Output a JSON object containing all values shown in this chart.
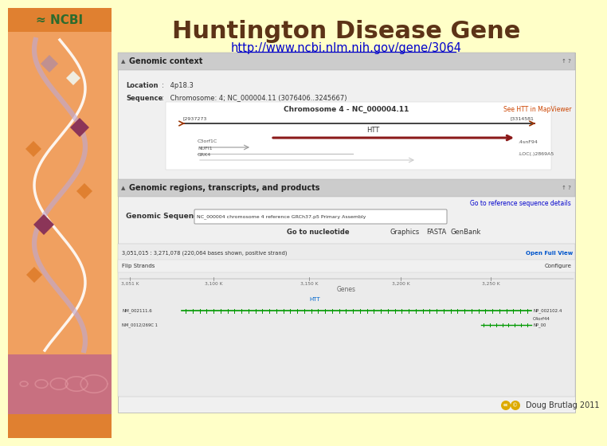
{
  "title": "Huntington Disease Gene",
  "url": "http://www.ncbi.nlm.nih.gov/gene/3064",
  "title_color": "#5C3317",
  "url_color": "#0000CC",
  "slide_bg": "#FFFFC8",
  "left_panel_bg": "#F0A060",
  "ncbi_bg_color": "#E08030",
  "ncbi_text_color": "#2D6B2D",
  "bottom_bar_color": "#E08030",
  "credit_text": "Doug Brutlag 2011",
  "credit_color": "#333333",
  "genomic_context_header": "Genomic context",
  "location_text": "Location  :   4p18.3",
  "sequence_text": "Sequence  :   Chromosome: 4; NC_000004.11 (3076406..3245667)",
  "chr_title": "Chromosome 4 - NC_000004.11",
  "see_htt_text": "See HTT in MapViewer",
  "genomic_regions_header": "Genomic regions, transcripts, and products",
  "go_to_ref": "Go to reference sequence details",
  "genomic_seq_label": "Genomic Sequence",
  "go_to_nuc": "Go to nucleotide",
  "graphics_text": "Graphics",
  "fasta_text": "FASTA",
  "genbank_text": "GenBank",
  "coord_text": "3,051,015 : 3,271,078 (220,064 bases shown, positive strand)",
  "open_full_view": "Open Full View",
  "flip_strands": "Flip Strands",
  "configure": "Configure",
  "genes_label": "Genes",
  "htt_label": "HTT",
  "nm_label": "NM_002111.6",
  "np_label": "NP_002102.4",
  "c4orf44": "C4orf44",
  "nm2_label": "NM_0012/269C 1",
  "np0_label": "NP_00",
  "scale_marks": [
    "3,051 K",
    "3,100 K",
    "3,150 K",
    "3,200 K",
    "3,250 K"
  ]
}
